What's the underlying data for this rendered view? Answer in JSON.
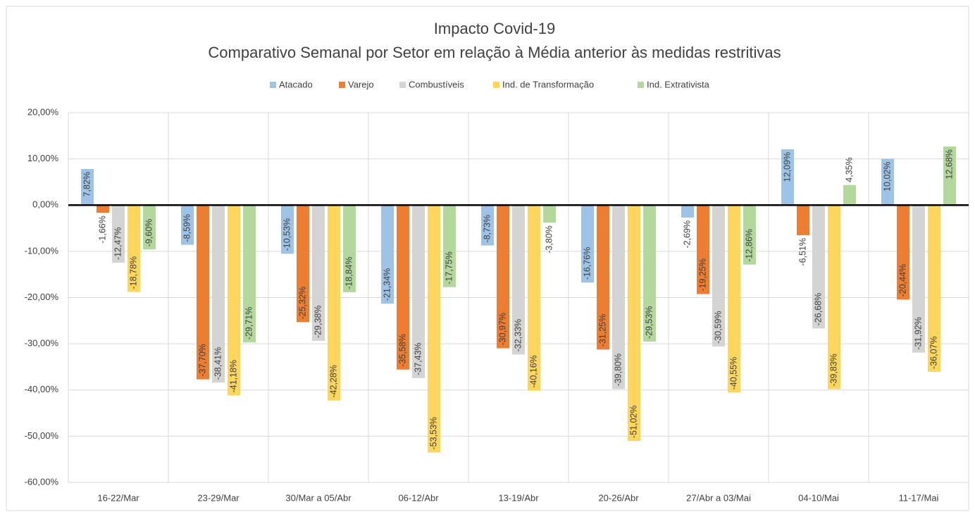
{
  "chart_data": {
    "type": "bar",
    "title": "Impacto Covid-19",
    "subtitle": "Comparativo Semanal por Setor em relação à Média anterior às medidas restritivas",
    "categories": [
      "16-22/Mar",
      "23-29/Mar",
      "30/Mar a 05/Abr",
      "06-12/Abr",
      "13-19/Abr",
      "20-26/Abr",
      "27/Abr a 03/Mai",
      "04-10/Mai",
      "11-17/Mai"
    ],
    "series": [
      {
        "name": "Atacado",
        "color": "#9dc3e6",
        "values": [
          7.82,
          -8.59,
          -10.53,
          -21.34,
          -8.73,
          -16.76,
          -2.69,
          12.09,
          10.02
        ],
        "value_labels": [
          "7,82%",
          "-8,59%",
          "-10,53%",
          "-21,34%",
          "-8,73%",
          "-16,76%",
          "-2,69%",
          "12,09%",
          "10,02%"
        ]
      },
      {
        "name": "Varejo",
        "color": "#ed7d31",
        "values": [
          -1.66,
          -37.7,
          -25.32,
          -35.58,
          -30.97,
          -31.25,
          -19.25,
          -6.51,
          -20.44
        ],
        "value_labels": [
          "-1,66%",
          "-37,70%",
          "-25,32%",
          "-35,58%",
          "-30,97%",
          "-31,25%",
          "-19,25%",
          "-6,51%",
          "-20,44%"
        ]
      },
      {
        "name": "Combustíveis",
        "color": "#d4d4d4",
        "values": [
          -12.47,
          -38.41,
          -29.38,
          -37.43,
          -32.33,
          -39.8,
          -30.59,
          -26.68,
          -31.92
        ],
        "value_labels": [
          "-12,47%",
          "-38,41%",
          "-29,38%",
          "-37,43%",
          "-32,33%",
          "-39,80%",
          "-30,59%",
          "-26,68%",
          "-31,92%"
        ]
      },
      {
        "name": "Ind. de Transformação",
        "color": "#ffd65c",
        "values": [
          -18.78,
          -41.18,
          -42.28,
          -53.53,
          -40.16,
          -51.02,
          -40.55,
          -39.83,
          -36.07
        ],
        "value_labels": [
          "-18,78%",
          "-41,18%",
          "-42,28%",
          "-53,53%",
          "-40,16%",
          "-51,02%",
          "-40,55%",
          "-39,83%",
          "-36,07%"
        ]
      },
      {
        "name": "Ind. Extrativista",
        "color": "#b3d89c",
        "values": [
          -9.6,
          -29.71,
          -18.84,
          -17.75,
          -3.8,
          -29.53,
          -12.86,
          4.35,
          12.68
        ],
        "value_labels": [
          "-9,60%",
          "-29,71%",
          "-18,84%",
          "-17,75%",
          "-3,80%",
          "-29,53%",
          "-12,86%",
          "4,35%",
          "12,68%"
        ]
      }
    ],
    "ylim": [
      -60,
      20
    ],
    "yticks": [
      {
        "value": 20,
        "label": "20,00%"
      },
      {
        "value": 10,
        "label": "10,00%"
      },
      {
        "value": 0,
        "label": "0,00%"
      },
      {
        "value": -10,
        "label": "-10,00%"
      },
      {
        "value": -20,
        "label": "-20,00%"
      },
      {
        "value": -30,
        "label": "-30,00%"
      },
      {
        "value": -40,
        "label": "-40,00%"
      },
      {
        "value": -50,
        "label": "-50,00%"
      },
      {
        "value": -60,
        "label": "-60,00%"
      }
    ],
    "grid": true,
    "legend": "top"
  }
}
